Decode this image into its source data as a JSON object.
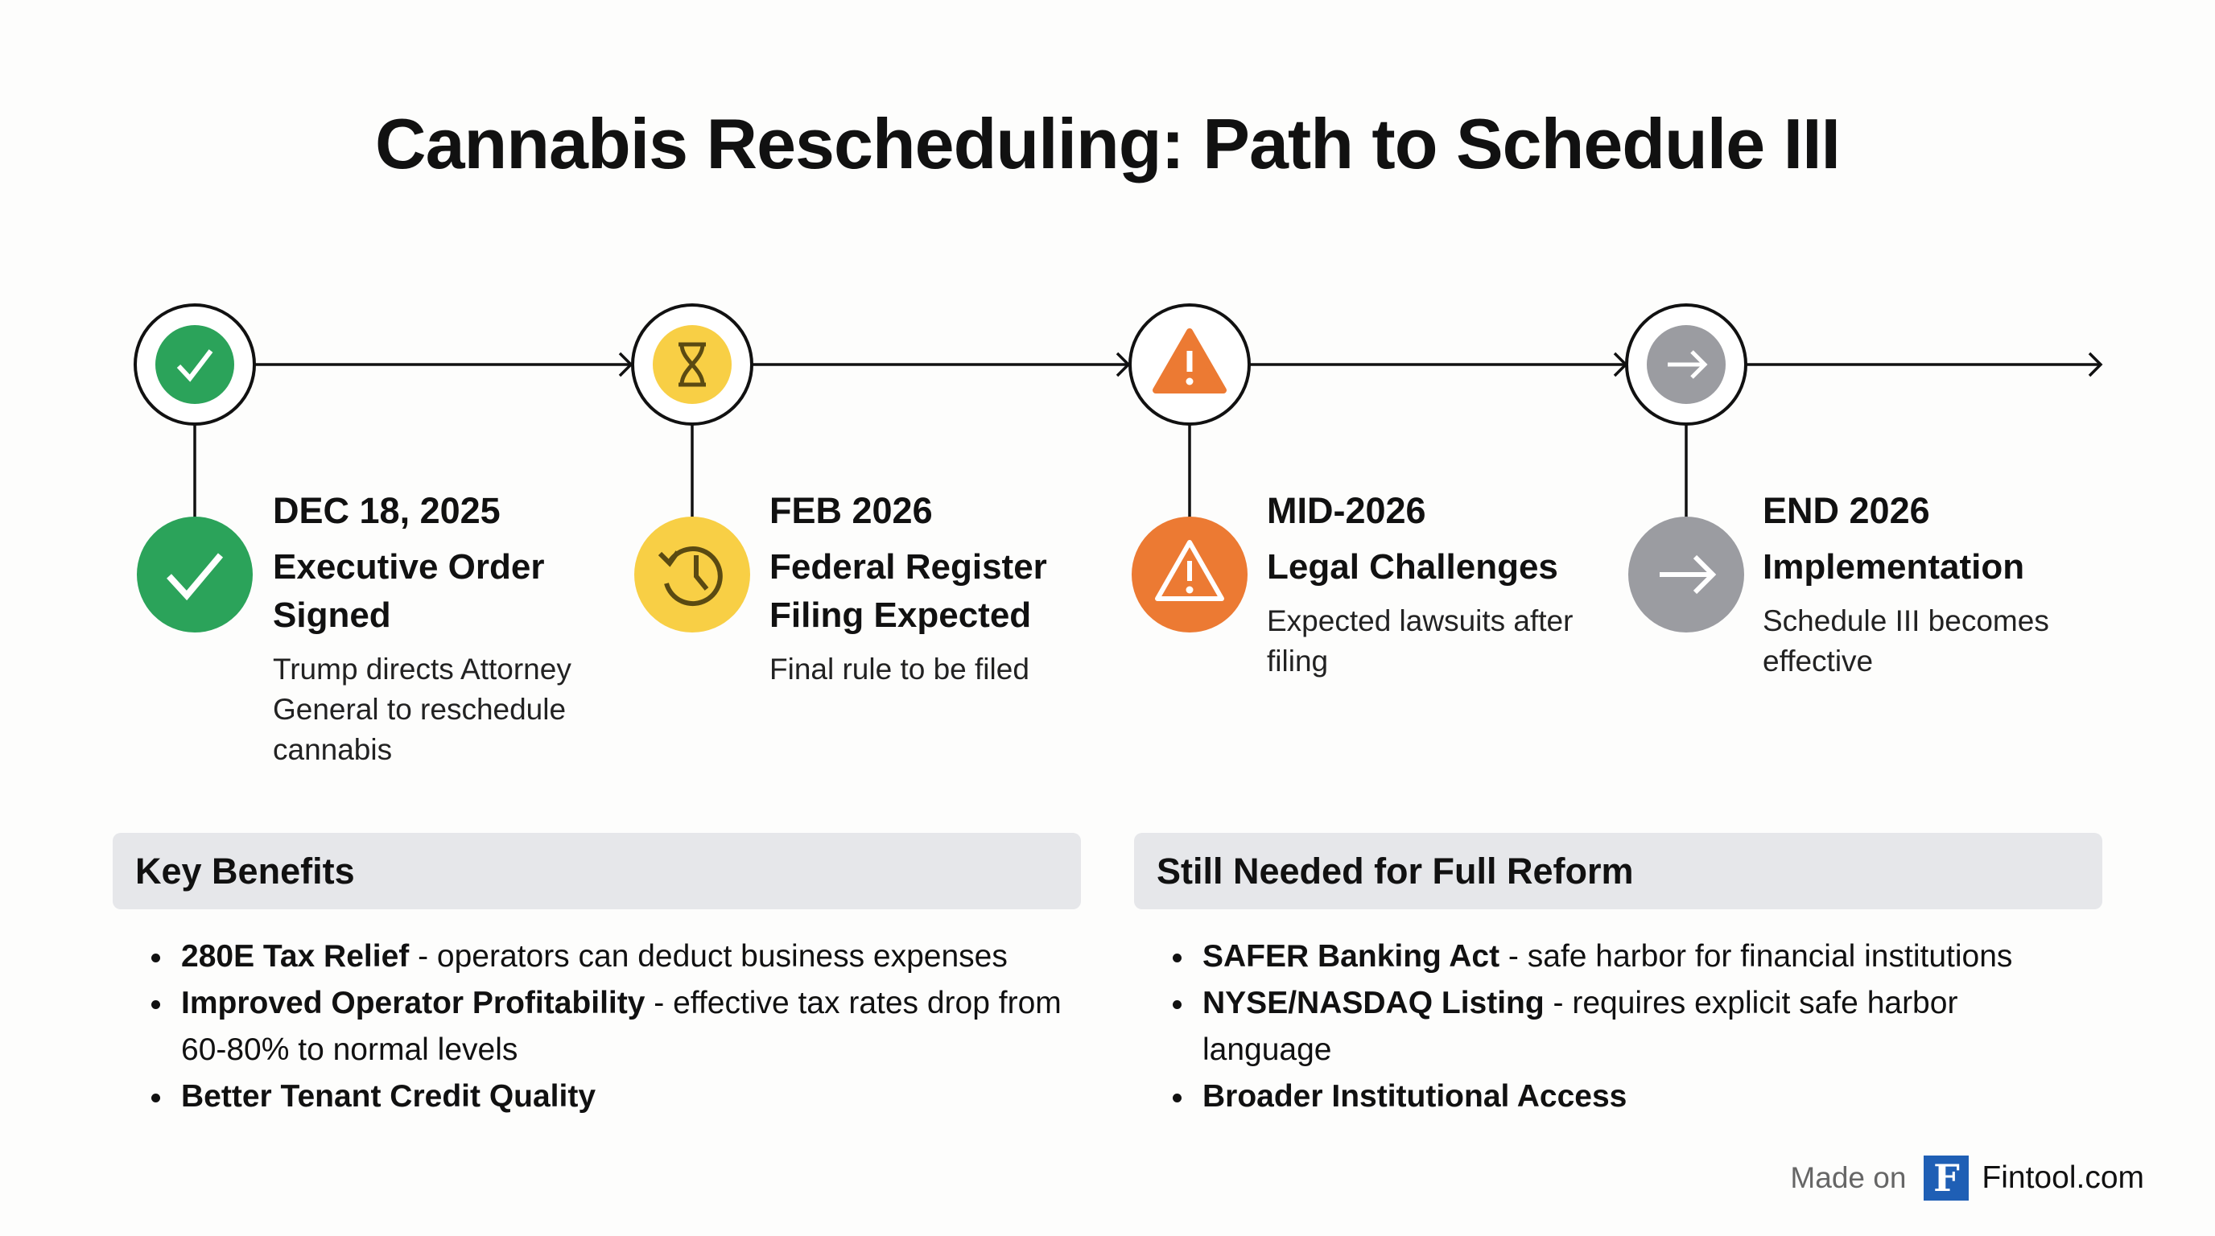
{
  "title": "Cannabis Rescheduling: Path to Schedule III",
  "colors": {
    "green": "#2ba35a",
    "yellow": "#f8cf45",
    "orange": "#ec7a33",
    "gray": "#9b9ca1",
    "logo": "#1f5fb5"
  },
  "steps": [
    {
      "date": "DEC 18, 2025",
      "title": "Executive Order Signed",
      "desc": "Trump directs Attorney General to reschedule cannabis",
      "top_icon": "check-icon",
      "bottom_icon": "check-icon"
    },
    {
      "date": "FEB 2026",
      "title": "Federal Register Filing Expected",
      "desc": "Final rule to be filed",
      "top_icon": "hourglass-icon",
      "bottom_icon": "history-clock-icon"
    },
    {
      "date": "MID-2026",
      "title": "Legal Challenges",
      "desc": "Expected lawsuits after filing",
      "top_icon": "warning-icon",
      "bottom_icon": "warning-icon"
    },
    {
      "date": "END 2026",
      "title": "Implementation",
      "desc": "Schedule III becomes effective",
      "top_icon": "arrow-right-icon",
      "bottom_icon": "arrow-right-icon"
    }
  ],
  "benefits": {
    "heading": "Key Benefits",
    "items": [
      {
        "bold": "280E Tax Relief",
        "rest": " - operators can deduct business expenses"
      },
      {
        "bold": "Improved Operator Profitability",
        "rest": " - effective tax rates drop from 60-80% to normal levels"
      },
      {
        "bold": "Better Tenant Credit Quality",
        "rest": ""
      }
    ]
  },
  "needed": {
    "heading": "Still Needed for Full Reform",
    "items": [
      {
        "bold": "SAFER Banking Act",
        "rest": " - safe harbor for financial institutions"
      },
      {
        "bold": "NYSE/NASDAQ Listing",
        "rest": " - requires explicit safe harbor language"
      },
      {
        "bold": "Broader Institutional Access",
        "rest": ""
      }
    ]
  },
  "footer": {
    "made_on": "Made on",
    "logo_letter": "F",
    "site": "Fintool.com"
  }
}
